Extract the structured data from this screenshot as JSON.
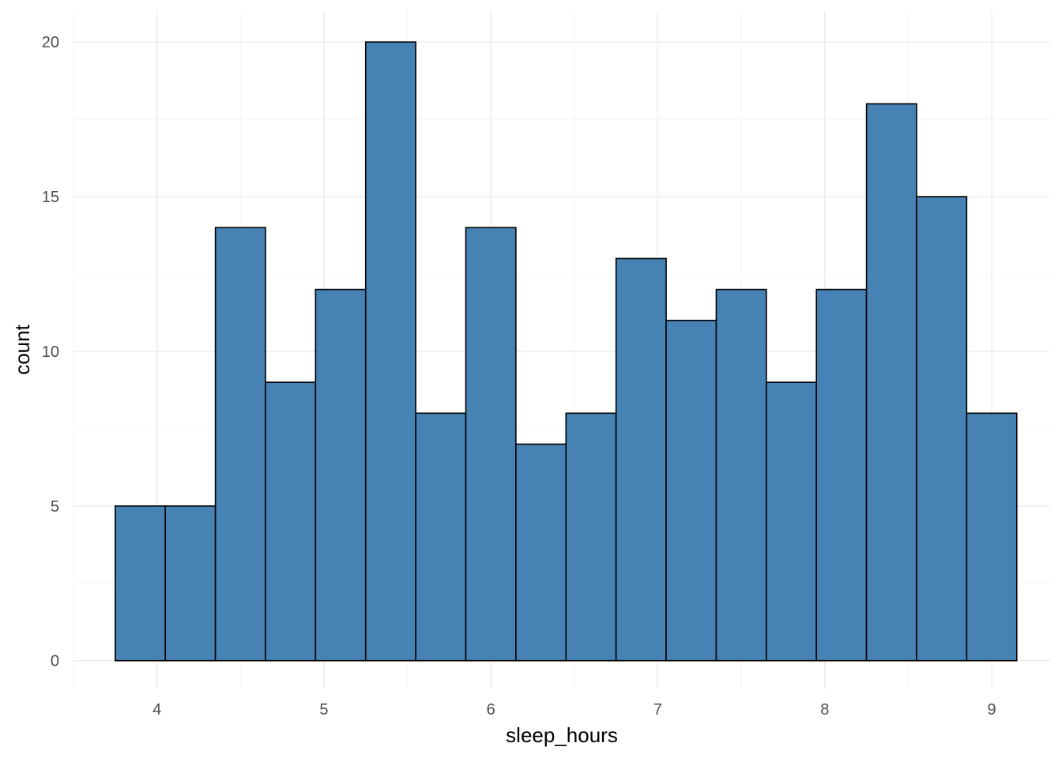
{
  "chart_data": {
    "type": "bar",
    "subtype": "histogram",
    "title": "",
    "xlabel": "sleep_hours",
    "ylabel": "count",
    "xlim": [
      3.5,
      9.35
    ],
    "ylim": [
      -0.9,
      21.0
    ],
    "x_ticks": [
      4,
      5,
      6,
      7,
      8,
      9
    ],
    "y_ticks": [
      0,
      5,
      10,
      15,
      20
    ],
    "grid": true,
    "bin_width": 0.3,
    "fill_color": "#4682b4",
    "outline_color": "#000000",
    "bins": [
      {
        "x0": 3.75,
        "x1": 4.05,
        "count": 5
      },
      {
        "x0": 4.05,
        "x1": 4.35,
        "count": 5
      },
      {
        "x0": 4.35,
        "x1": 4.65,
        "count": 14
      },
      {
        "x0": 4.65,
        "x1": 4.95,
        "count": 9
      },
      {
        "x0": 4.95,
        "x1": 5.25,
        "count": 12
      },
      {
        "x0": 5.25,
        "x1": 5.55,
        "count": 20
      },
      {
        "x0": 5.55,
        "x1": 5.85,
        "count": 8
      },
      {
        "x0": 5.85,
        "x1": 6.15,
        "count": 14
      },
      {
        "x0": 6.15,
        "x1": 6.45,
        "count": 7
      },
      {
        "x0": 6.45,
        "x1": 6.75,
        "count": 8
      },
      {
        "x0": 6.75,
        "x1": 7.05,
        "count": 13
      },
      {
        "x0": 7.05,
        "x1": 7.35,
        "count": 11
      },
      {
        "x0": 7.35,
        "x1": 7.65,
        "count": 12
      },
      {
        "x0": 7.65,
        "x1": 7.95,
        "count": 9
      },
      {
        "x0": 7.95,
        "x1": 8.25,
        "count": 12
      },
      {
        "x0": 8.25,
        "x1": 8.55,
        "count": 18
      },
      {
        "x0": 8.55,
        "x1": 8.85,
        "count": 15
      },
      {
        "x0": 8.85,
        "x1": 9.15,
        "count": 8
      }
    ]
  }
}
